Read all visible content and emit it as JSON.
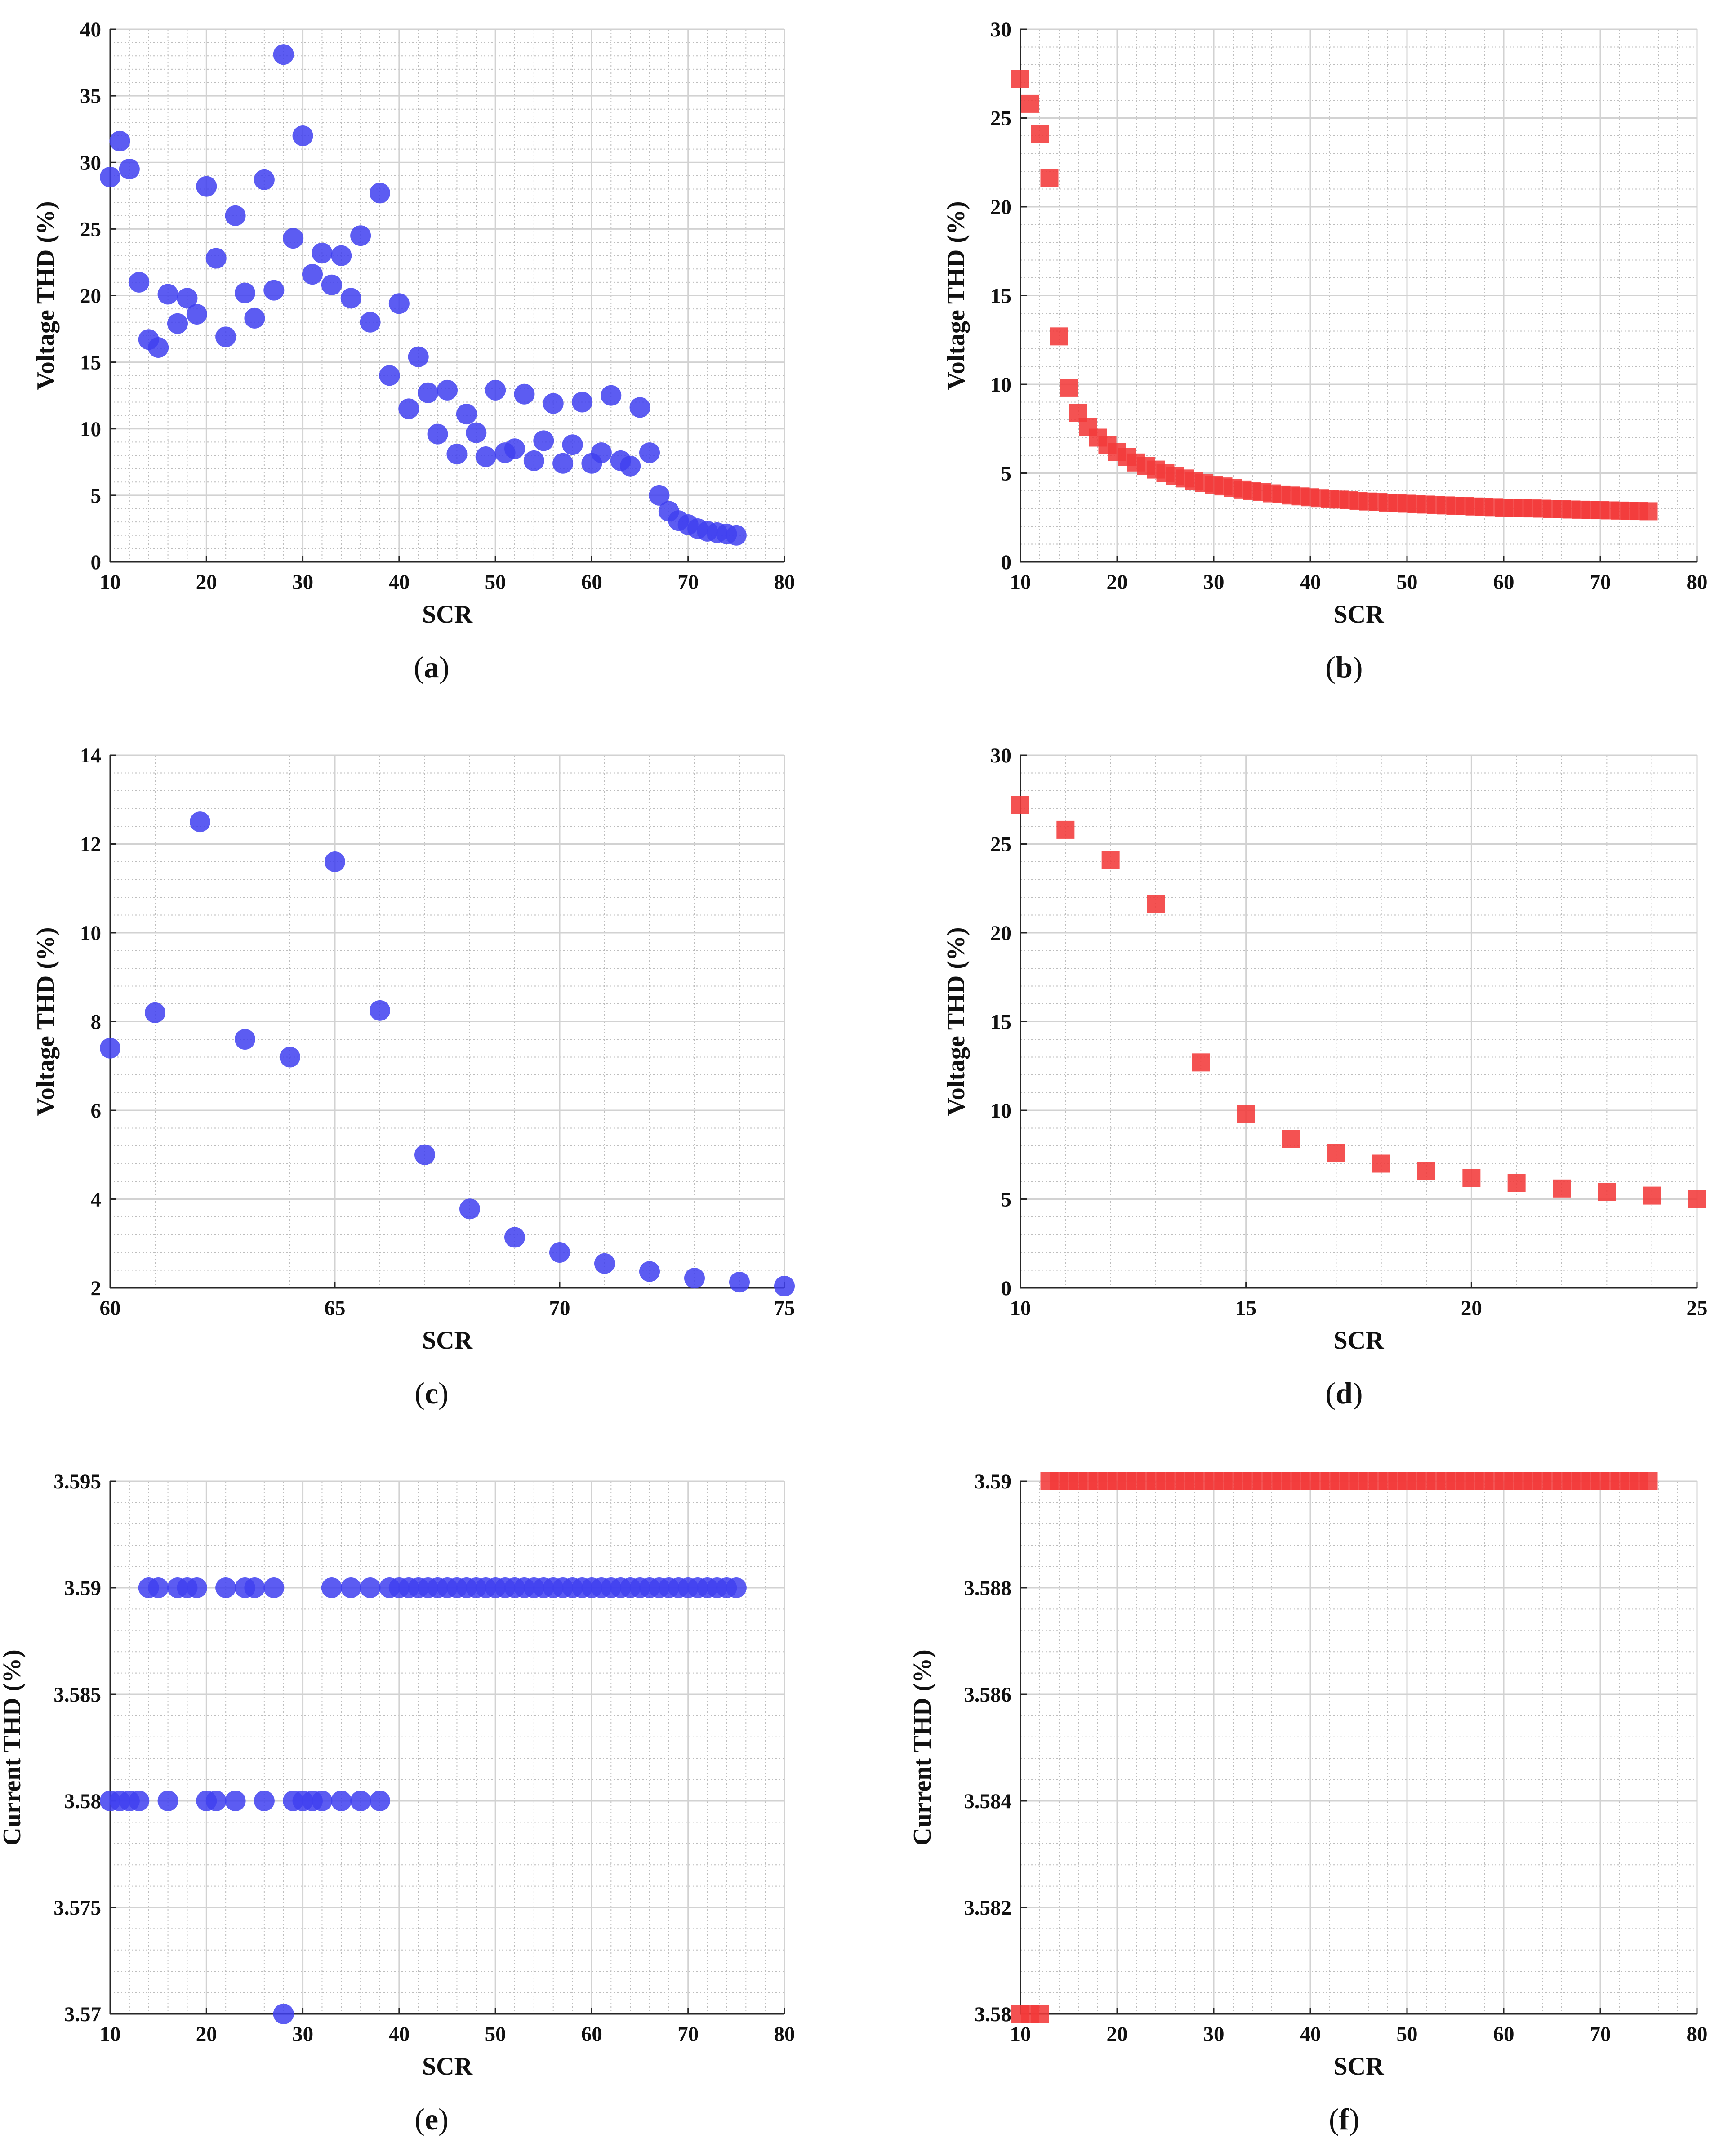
{
  "colors": {
    "blue_marker": "#3f3ff0",
    "red_marker": "#f23a3a",
    "grid_major": "#d2d2d2",
    "grid_minor": "#bdbdbd",
    "axis": "#262626",
    "text": "#111111"
  },
  "chart_data": [
    {
      "id": "a",
      "caption": "a",
      "type": "scatter",
      "marker": "circle",
      "color": "#3f3ff0",
      "xlabel": "SCR",
      "ylabel": "Voltage THD (%)",
      "xlim": [
        10,
        80
      ],
      "ylim": [
        0,
        40
      ],
      "xticks": [
        10,
        20,
        30,
        40,
        50,
        60,
        70,
        80
      ],
      "yticks": [
        0,
        5,
        10,
        15,
        20,
        25,
        30,
        35,
        40
      ],
      "grid": true,
      "minor_grid": true,
      "x": [
        10,
        11,
        12,
        13,
        14,
        15,
        16,
        17,
        18,
        19,
        20,
        21,
        22,
        23,
        24,
        25,
        26,
        27,
        28,
        29,
        30,
        31,
        32,
        33,
        34,
        35,
        36,
        37,
        38,
        39,
        40,
        41,
        42,
        43,
        44,
        45,
        46,
        47,
        48,
        49,
        50,
        51,
        52,
        53,
        54,
        55,
        56,
        57,
        58,
        59,
        60,
        61,
        62,
        63,
        64,
        65,
        66,
        67,
        68,
        69,
        70,
        71,
        72,
        73,
        74,
        75
      ],
      "y": [
        28.9,
        31.6,
        29.5,
        21.0,
        16.7,
        16.1,
        20.1,
        17.9,
        19.8,
        18.6,
        28.2,
        22.8,
        16.9,
        26.0,
        20.2,
        18.3,
        28.7,
        20.4,
        38.1,
        24.3,
        32.0,
        21.6,
        23.2,
        20.8,
        23.0,
        19.8,
        24.5,
        18.0,
        27.7,
        14.0,
        19.4,
        11.5,
        15.4,
        12.7,
        9.6,
        12.9,
        8.1,
        11.1,
        9.7,
        7.9,
        12.9,
        8.2,
        8.5,
        12.6,
        7.6,
        9.1,
        11.9,
        7.4,
        8.8,
        12.0,
        7.4,
        8.2,
        12.5,
        7.6,
        7.2,
        11.6,
        8.2,
        5.0,
        3.8,
        3.1,
        2.8,
        2.5,
        2.3,
        2.2,
        2.1,
        2.0
      ]
    },
    {
      "id": "b",
      "caption": "b",
      "type": "scatter",
      "marker": "square",
      "color": "#f23a3a",
      "xlabel": "SCR",
      "ylabel": "Voltage THD (%)",
      "xlim": [
        10,
        80
      ],
      "ylim": [
        0,
        30
      ],
      "xticks": [
        10,
        20,
        30,
        40,
        50,
        60,
        70,
        80
      ],
      "yticks": [
        0,
        5,
        10,
        15,
        20,
        25,
        30
      ],
      "grid": true,
      "minor_grid": true,
      "x": [
        10,
        11,
        12,
        13,
        14,
        15,
        16,
        17,
        18,
        19,
        20,
        21,
        22,
        23,
        24,
        25,
        26,
        27,
        28,
        29,
        30,
        31,
        32,
        33,
        34,
        35,
        36,
        37,
        38,
        39,
        40,
        41,
        42,
        43,
        44,
        45,
        46,
        47,
        48,
        49,
        50,
        51,
        52,
        53,
        54,
        55,
        56,
        57,
        58,
        59,
        60,
        61,
        62,
        63,
        64,
        65,
        66,
        67,
        68,
        69,
        70,
        71,
        72,
        73,
        74,
        75
      ],
      "y": [
        27.2,
        25.8,
        24.1,
        21.6,
        12.7,
        9.8,
        8.4,
        7.6,
        7.0,
        6.6,
        6.2,
        5.9,
        5.6,
        5.4,
        5.2,
        5.0,
        4.85,
        4.7,
        4.57,
        4.45,
        4.35,
        4.25,
        4.16,
        4.08,
        4.0,
        3.93,
        3.86,
        3.8,
        3.74,
        3.69,
        3.64,
        3.59,
        3.55,
        3.51,
        3.47,
        3.43,
        3.4,
        3.37,
        3.34,
        3.31,
        3.28,
        3.25,
        3.23,
        3.2,
        3.18,
        3.16,
        3.14,
        3.12,
        3.1,
        3.08,
        3.06,
        3.04,
        3.03,
        3.01,
        3.0,
        2.98,
        2.97,
        2.95,
        2.94,
        2.92,
        2.91,
        2.9,
        2.89,
        2.87,
        2.86,
        2.85
      ]
    },
    {
      "id": "c",
      "caption": "c",
      "type": "scatter",
      "marker": "circle",
      "color": "#3f3ff0",
      "xlabel": "SCR",
      "ylabel": "Voltage THD (%)",
      "xlim": [
        60,
        75
      ],
      "ylim": [
        2,
        14
      ],
      "xticks": [
        60,
        65,
        70,
        75
      ],
      "yticks": [
        2,
        4,
        6,
        8,
        10,
        12,
        14
      ],
      "grid": true,
      "minor_grid": true,
      "x": [
        60,
        61,
        62,
        63,
        64,
        65,
        66,
        67,
        68,
        69,
        70,
        71,
        72,
        73,
        74,
        75
      ],
      "y": [
        7.4,
        8.2,
        12.5,
        7.6,
        7.2,
        11.6,
        8.25,
        5.0,
        3.78,
        3.14,
        2.8,
        2.55,
        2.37,
        2.22,
        2.13,
        2.04
      ]
    },
    {
      "id": "d",
      "caption": "d",
      "type": "scatter",
      "marker": "square",
      "color": "#f23a3a",
      "xlabel": "SCR",
      "ylabel": "Voltage THD (%)",
      "xlim": [
        10,
        25
      ],
      "ylim": [
        0,
        30
      ],
      "xticks": [
        10,
        15,
        20,
        25
      ],
      "yticks": [
        0,
        5,
        10,
        15,
        20,
        25,
        30
      ],
      "grid": true,
      "minor_grid": true,
      "x": [
        10,
        11,
        12,
        13,
        14,
        15,
        16,
        17,
        18,
        19,
        20,
        21,
        22,
        23,
        24,
        25
      ],
      "y": [
        27.2,
        25.8,
        24.1,
        21.6,
        12.7,
        9.8,
        8.4,
        7.6,
        7.0,
        6.6,
        6.2,
        5.9,
        5.6,
        5.4,
        5.2,
        5.0
      ]
    },
    {
      "id": "e",
      "caption": "e",
      "type": "scatter",
      "marker": "circle",
      "color": "#3f3ff0",
      "xlabel": "SCR",
      "ylabel": "Current THD (%)",
      "xlim": [
        10,
        80
      ],
      "ylim": [
        3.57,
        3.595
      ],
      "xticks": [
        10,
        20,
        30,
        40,
        50,
        60,
        70,
        80
      ],
      "yticks": [
        3.57,
        3.575,
        3.58,
        3.585,
        3.59,
        3.595
      ],
      "ytick_labels": [
        "3.57",
        "3.575",
        "3.58",
        "3.585",
        "3.59",
        "3.595"
      ],
      "grid": true,
      "minor_grid": true,
      "x": [
        10,
        11,
        12,
        13,
        14,
        15,
        16,
        17,
        18,
        19,
        20,
        21,
        22,
        23,
        24,
        25,
        26,
        27,
        28,
        29,
        30,
        31,
        32,
        33,
        34,
        35,
        36,
        37,
        38,
        39,
        40,
        41,
        42,
        43,
        44,
        45,
        46,
        47,
        48,
        49,
        50,
        51,
        52,
        53,
        54,
        55,
        56,
        57,
        58,
        59,
        60,
        61,
        62,
        63,
        64,
        65,
        66,
        67,
        68,
        69,
        70,
        71,
        72,
        73,
        74,
        75
      ],
      "y": [
        3.58,
        3.58,
        3.58,
        3.58,
        3.59,
        3.59,
        3.58,
        3.59,
        3.59,
        3.59,
        3.58,
        3.58,
        3.59,
        3.58,
        3.59,
        3.59,
        3.58,
        3.59,
        3.57,
        3.58,
        3.58,
        3.58,
        3.58,
        3.59,
        3.58,
        3.59,
        3.58,
        3.59,
        3.58,
        3.59,
        3.59,
        3.59,
        3.59,
        3.59,
        3.59,
        3.59,
        3.59,
        3.59,
        3.59,
        3.59,
        3.59,
        3.59,
        3.59,
        3.59,
        3.59,
        3.59,
        3.59,
        3.59,
        3.59,
        3.59,
        3.59,
        3.59,
        3.59,
        3.59,
        3.59,
        3.59,
        3.59,
        3.59,
        3.59,
        3.59,
        3.59,
        3.59,
        3.59,
        3.59,
        3.59,
        3.59
      ]
    },
    {
      "id": "f",
      "caption": "f",
      "type": "scatter",
      "marker": "square",
      "color": "#f23a3a",
      "xlabel": "SCR",
      "ylabel": "Current THD (%)",
      "xlim": [
        10,
        80
      ],
      "ylim": [
        3.58,
        3.59
      ],
      "xticks": [
        10,
        20,
        30,
        40,
        50,
        60,
        70,
        80
      ],
      "yticks": [
        3.58,
        3.582,
        3.584,
        3.586,
        3.588,
        3.59
      ],
      "ytick_labels": [
        "3.58",
        "3.582",
        "3.584",
        "3.586",
        "3.588",
        "3.59"
      ],
      "grid": true,
      "minor_grid": true,
      "x": [
        10,
        11,
        12,
        13,
        14,
        15,
        16,
        17,
        18,
        19,
        20,
        21,
        22,
        23,
        24,
        25,
        26,
        27,
        28,
        29,
        30,
        31,
        32,
        33,
        34,
        35,
        36,
        37,
        38,
        39,
        40,
        41,
        42,
        43,
        44,
        45,
        46,
        47,
        48,
        49,
        50,
        51,
        52,
        53,
        54,
        55,
        56,
        57,
        58,
        59,
        60,
        61,
        62,
        63,
        64,
        65,
        66,
        67,
        68,
        69,
        70,
        71,
        72,
        73,
        74,
        75
      ],
      "y": [
        3.58,
        3.58,
        3.58,
        3.59,
        3.59,
        3.59,
        3.59,
        3.59,
        3.59,
        3.59,
        3.59,
        3.59,
        3.59,
        3.59,
        3.59,
        3.59,
        3.59,
        3.59,
        3.59,
        3.59,
        3.59,
        3.59,
        3.59,
        3.59,
        3.59,
        3.59,
        3.59,
        3.59,
        3.59,
        3.59,
        3.59,
        3.59,
        3.59,
        3.59,
        3.59,
        3.59,
        3.59,
        3.59,
        3.59,
        3.59,
        3.59,
        3.59,
        3.59,
        3.59,
        3.59,
        3.59,
        3.59,
        3.59,
        3.59,
        3.59,
        3.59,
        3.59,
        3.59,
        3.59,
        3.59,
        3.59,
        3.59,
        3.59,
        3.59,
        3.59,
        3.59,
        3.59,
        3.59,
        3.59,
        3.59,
        3.59
      ]
    }
  ]
}
